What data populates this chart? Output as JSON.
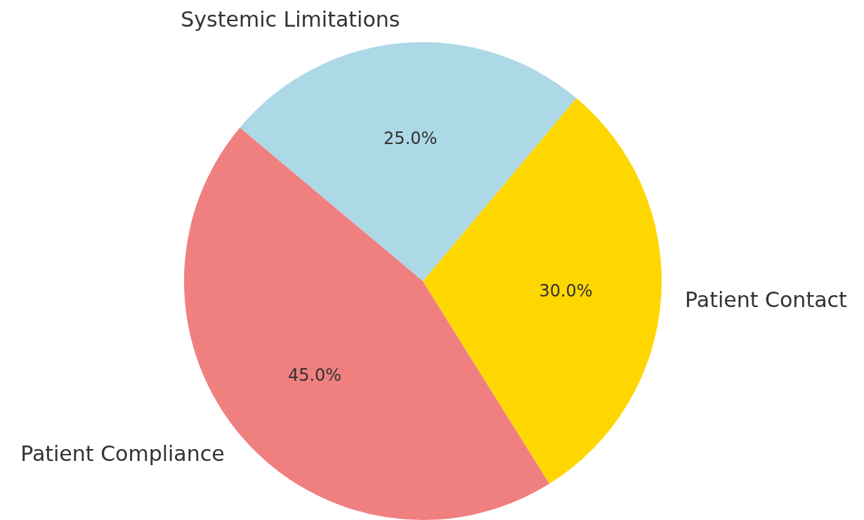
{
  "chart_data": {
    "type": "pie",
    "categories": [
      "Patient Compliance",
      "Patient Contact",
      "Systemic Limitations"
    ],
    "values": [
      45,
      30,
      25
    ],
    "colors": [
      "#f08080",
      "#ffd700",
      "#add8e6"
    ],
    "value_labels": [
      "45.0%",
      "30.0%",
      "25.0%"
    ]
  }
}
